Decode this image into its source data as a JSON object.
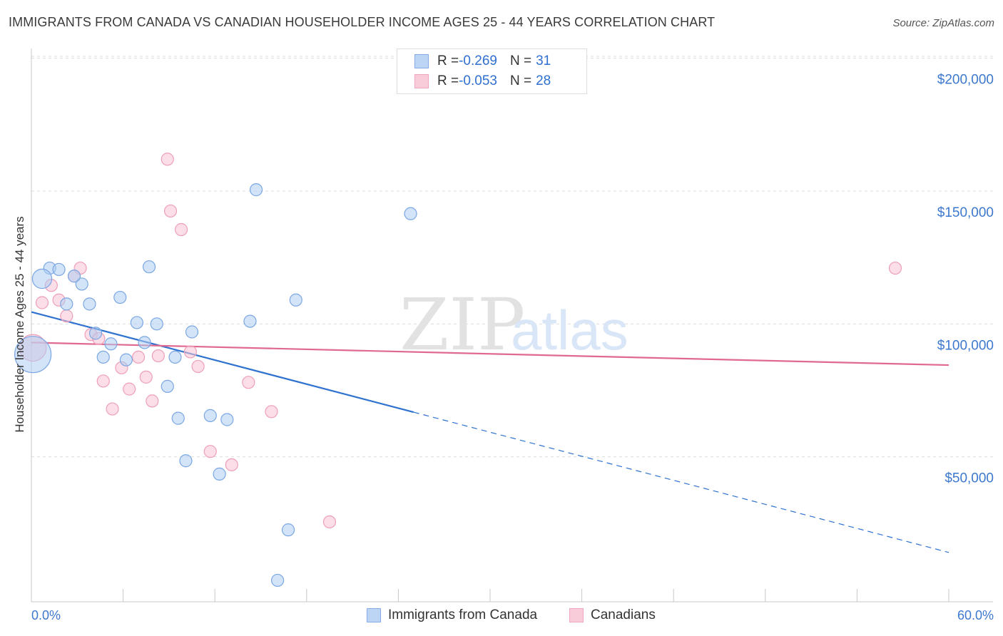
{
  "title": "IMMIGRANTS FROM CANADA VS CANADIAN HOUSEHOLDER INCOME AGES 25 - 44 YEARS CORRELATION CHART",
  "source": "Source: ZipAtlas.com",
  "watermark": {
    "zip": "ZIP",
    "atlas": "atlas"
  },
  "legend": {
    "series1": {
      "r_label": "R = ",
      "r_value": "-0.269",
      "n_label": "N = ",
      "n_value": "31"
    },
    "series2": {
      "r_label": "R = ",
      "r_value": "-0.053",
      "n_label": "N = ",
      "n_value": "28"
    }
  },
  "colors": {
    "blue_fill": "#aeccf3",
    "blue_stroke": "#7aa7e3",
    "blue_line": "#2f72cf",
    "pink_fill": "#f8c3d3",
    "pink_stroke": "#ee9fb8",
    "pink_line": "#e0698f",
    "axis_text": "#3d78cf",
    "grid": "#dddddd"
  },
  "chart_data": {
    "type": "scatter",
    "title": "IMMIGRANTS FROM CANADA VS CANADIAN HOUSEHOLDER INCOME AGES 25 - 44 YEARS CORRELATION CHART",
    "xlabel": "",
    "ylabel": "Householder Income Ages 25 - 44 years",
    "xlim": [
      0,
      60
    ],
    "ylim": [
      0,
      205000
    ],
    "x_tick_labels": [
      "0.0%",
      "60.0%"
    ],
    "y_ticks": [
      50000,
      100000,
      150000,
      200000
    ],
    "y_tick_labels": [
      "$50,000",
      "$100,000",
      "$150,000",
      "$200,000"
    ],
    "series": [
      {
        "name": "Immigrants from Canada",
        "r": -0.269,
        "n": 31,
        "points": [
          [
            0.1,
            88500,
            3
          ],
          [
            1.2,
            121000,
            1
          ],
          [
            1.8,
            120500,
            1
          ],
          [
            0.7,
            117000,
            1.6
          ],
          [
            3.3,
            115000,
            1
          ],
          [
            2.8,
            118000,
            1
          ],
          [
            2.3,
            107500,
            1
          ],
          [
            3.8,
            107500,
            1
          ],
          [
            5.8,
            110000,
            1
          ],
          [
            7.7,
            121500,
            1
          ],
          [
            4.2,
            96500,
            1
          ],
          [
            5.2,
            92500,
            1
          ],
          [
            4.7,
            87500,
            1
          ],
          [
            6.2,
            86500,
            1
          ],
          [
            6.9,
            100500,
            1
          ],
          [
            7.4,
            93000,
            1
          ],
          [
            8.2,
            100000,
            1
          ],
          [
            8.9,
            76500,
            1
          ],
          [
            9.4,
            87500,
            1
          ],
          [
            10.5,
            97000,
            1
          ],
          [
            9.6,
            64500,
            1
          ],
          [
            11.7,
            65500,
            1
          ],
          [
            12.8,
            64000,
            1
          ],
          [
            14.3,
            101000,
            1
          ],
          [
            17.3,
            109000,
            1
          ],
          [
            14.7,
            150500,
            1
          ],
          [
            24.8,
            141500,
            1
          ],
          [
            10.1,
            48500,
            1
          ],
          [
            12.3,
            43500,
            1
          ],
          [
            16.8,
            22500,
            1
          ],
          [
            16.1,
            3500,
            1
          ]
        ],
        "trend": {
          "x_start": 0,
          "y_start": 104500,
          "x_solid_end": 25,
          "x_end": 60,
          "y_end": 14000
        }
      },
      {
        "name": "Canadians",
        "r": -0.053,
        "n": 28,
        "points": [
          [
            0.1,
            91000,
            2.2
          ],
          [
            0.7,
            108000,
            1
          ],
          [
            1.3,
            114500,
            1
          ],
          [
            1.8,
            109000,
            1
          ],
          [
            2.3,
            103000,
            1
          ],
          [
            2.8,
            118000,
            1
          ],
          [
            3.2,
            121000,
            1
          ],
          [
            3.9,
            96000,
            1
          ],
          [
            4.4,
            94500,
            1
          ],
          [
            4.7,
            78500,
            1
          ],
          [
            5.3,
            68000,
            1
          ],
          [
            5.9,
            83500,
            1
          ],
          [
            6.4,
            75500,
            1
          ],
          [
            7.0,
            87500,
            1
          ],
          [
            7.5,
            80000,
            1
          ],
          [
            7.9,
            71000,
            1
          ],
          [
            8.3,
            88000,
            1
          ],
          [
            8.9,
            162000,
            1
          ],
          [
            9.1,
            142500,
            1
          ],
          [
            9.8,
            135500,
            1
          ],
          [
            10.4,
            89500,
            1
          ],
          [
            10.9,
            84000,
            1
          ],
          [
            11.7,
            52000,
            1
          ],
          [
            13.1,
            47000,
            1
          ],
          [
            14.2,
            78000,
            1
          ],
          [
            15.7,
            67000,
            1
          ],
          [
            19.5,
            25500,
            1
          ],
          [
            56.5,
            121000,
            1
          ]
        ],
        "trend": {
          "x_start": 0,
          "y_start": 93000,
          "x_end": 60,
          "y_end": 84500
        }
      }
    ]
  }
}
